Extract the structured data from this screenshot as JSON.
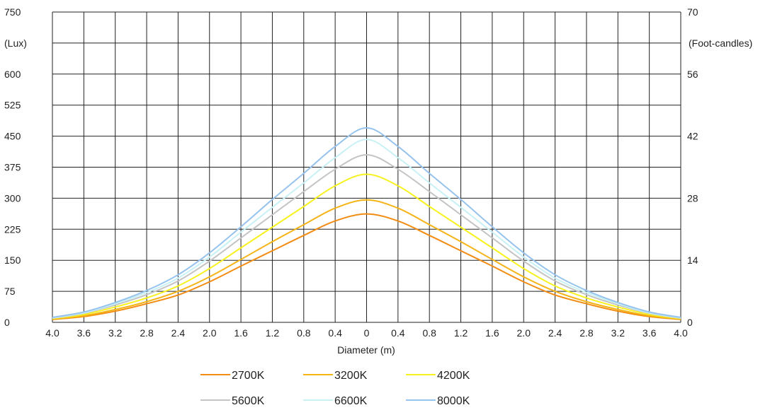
{
  "chart_data": {
    "type": "line",
    "title": "",
    "xlabel": "Diameter (m)",
    "ylabel_left": "(Lux)",
    "ylabel_right": "(Foot-candles)",
    "x_tick_labels": [
      "4.0",
      "3.6",
      "3.2",
      "2.8",
      "2.4",
      "2.0",
      "1.6",
      "1.2",
      "0.8",
      "0.4",
      "0",
      "0.4",
      "0.8",
      "1.2",
      "1.6",
      "2.0",
      "2.4",
      "2.8",
      "3.2",
      "3.6",
      "4.0"
    ],
    "x": [
      -4.0,
      -3.6,
      -3.2,
      -2.8,
      -2.4,
      -2.0,
      -1.6,
      -1.2,
      -0.8,
      -0.4,
      0,
      0.4,
      0.8,
      1.2,
      1.6,
      2.0,
      2.4,
      2.8,
      3.2,
      3.6,
      4.0
    ],
    "xlim": [
      -4.0,
      4.0
    ],
    "ylim_left": [
      0,
      750
    ],
    "left_ticks": [
      "0",
      "75",
      "150",
      "225",
      "300",
      "375",
      "450",
      "525",
      "600",
      "750"
    ],
    "left_tick_values": [
      0,
      75,
      150,
      225,
      300,
      375,
      450,
      525,
      600,
      750
    ],
    "ylim_right": [
      0,
      70
    ],
    "right_ticks": [
      "0",
      "14",
      "28",
      "42",
      "56",
      "70"
    ],
    "right_tick_values": [
      0,
      14,
      28,
      42,
      56,
      70
    ],
    "grid": true,
    "legend_position": "bottom-center",
    "series": [
      {
        "name": "2700K",
        "color": "#f28c12",
        "values": [
          7,
          14,
          27,
          45,
          66,
          98,
          136,
          173,
          210,
          245,
          262,
          245,
          210,
          173,
          136,
          98,
          66,
          45,
          27,
          14,
          7
        ]
      },
      {
        "name": "3200K",
        "color": "#f5b415",
        "values": [
          8,
          16,
          31,
          50,
          75,
          110,
          152,
          195,
          236,
          276,
          296,
          276,
          236,
          195,
          152,
          110,
          75,
          50,
          31,
          16,
          8
        ]
      },
      {
        "name": "4200K",
        "color": "#f7f21f",
        "values": [
          9,
          19,
          37,
          59,
          88,
          130,
          180,
          230,
          280,
          330,
          358,
          330,
          280,
          230,
          180,
          130,
          88,
          59,
          37,
          19,
          9
        ]
      },
      {
        "name": "5600K",
        "color": "#c4c4c4",
        "values": [
          10,
          22,
          42,
          67,
          100,
          148,
          204,
          260,
          316,
          370,
          405,
          370,
          316,
          260,
          204,
          148,
          100,
          67,
          42,
          22,
          10
        ]
      },
      {
        "name": "6600K",
        "color": "#c8f1f6",
        "values": [
          11,
          23,
          45,
          72,
          107,
          158,
          218,
          278,
          337,
          398,
          442,
          398,
          337,
          278,
          218,
          158,
          107,
          72,
          45,
          23,
          11
        ]
      },
      {
        "name": "8000K",
        "color": "#96c3ee",
        "values": [
          12,
          25,
          48,
          77,
          115,
          168,
          231,
          297,
          360,
          425,
          470,
          425,
          360,
          297,
          231,
          168,
          115,
          77,
          48,
          25,
          12
        ]
      }
    ]
  }
}
